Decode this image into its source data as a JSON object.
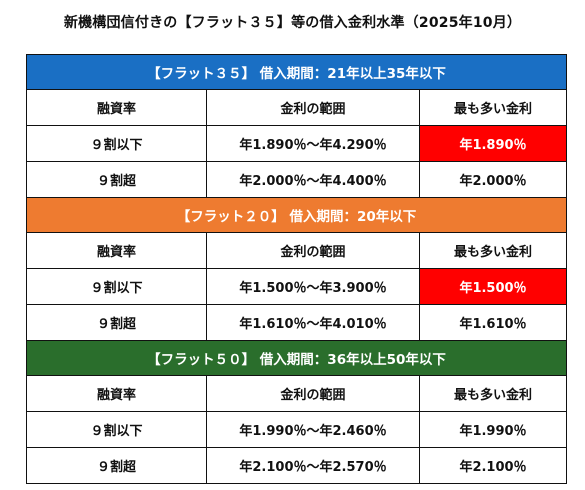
{
  "page_title": "新機構団信付きの【フラット３５】等の借入金利水準（2025年10月）",
  "colors": {
    "flat35_band": "#1a6fc4",
    "flat20_band": "#ee7b30",
    "flat50_band": "#2a6e2c",
    "highlight": "#ff0000"
  },
  "sections": [
    {
      "title": "【フラット３５】 借入期間：21年以上35年以下",
      "headers": [
        "融資率",
        "金利の範囲",
        "最も多い金利"
      ],
      "rows": [
        {
          "ratio": "９割以下",
          "range": "年1.890％～年4.290％",
          "most_common": "年1.890％",
          "highlighted": true
        },
        {
          "ratio": "９割超",
          "range": "年2.000％～年4.400％",
          "most_common": "年2.000％",
          "highlighted": false
        }
      ]
    },
    {
      "title": "【フラット２０】 借入期間：20年以下",
      "headers": [
        "融資率",
        "金利の範囲",
        "最も多い金利"
      ],
      "rows": [
        {
          "ratio": "９割以下",
          "range": "年1.500％～年3.900％",
          "most_common": "年1.500％",
          "highlighted": true
        },
        {
          "ratio": "９割超",
          "range": "年1.610％～年4.010％",
          "most_common": "年1.610％",
          "highlighted": false
        }
      ]
    },
    {
      "title": "【フラット５０】 借入期間：36年以上50年以下",
      "headers": [
        "融資率",
        "金利の範囲",
        "最も多い金利"
      ],
      "rows": [
        {
          "ratio": "９割以下",
          "range": "年1.990％～年2.460％",
          "most_common": "年1.990％",
          "highlighted": false
        },
        {
          "ratio": "９割超",
          "range": "年2.100％～年2.570％",
          "most_common": "年2.100％",
          "highlighted": false
        }
      ]
    }
  ]
}
